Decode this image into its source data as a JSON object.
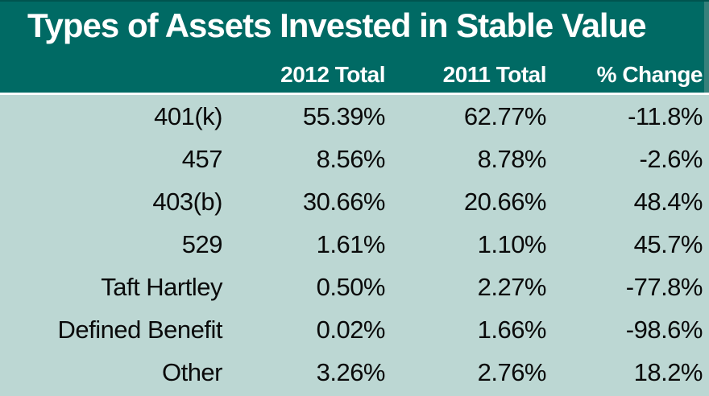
{
  "chart_data": {
    "type": "table",
    "title": "Types of Assets Invested in Stable Value",
    "columns": [
      "2012 Total",
      "2011 Total",
      "% Change"
    ],
    "rows": [
      [
        "401(k)",
        "55.39%",
        "62.77%",
        "-11.8%"
      ],
      [
        "457",
        "8.56%",
        "8.78%",
        "-2.6%"
      ],
      [
        "403(b)",
        "30.66%",
        "20.66%",
        "48.4%"
      ],
      [
        "529",
        "1.61%",
        "1.10%",
        "45.7%"
      ],
      [
        "Taft Hartley",
        "0.50%",
        "2.27%",
        "-77.8%"
      ],
      [
        "Defined Benefit",
        "0.02%",
        "1.66%",
        "-98.6%"
      ],
      [
        "Other",
        "3.26%",
        "2.76%",
        "18.2%"
      ]
    ],
    "layout_hints": {
      "alignment": "right",
      "header_position": "top",
      "row_separators": false
    }
  },
  "colors": {
    "header_bg": "#006A64",
    "header_edge_strip": "#35817B",
    "header_top_line": "#00544f",
    "separator": "#FFFFFF",
    "body_bg": "#BCD7D3",
    "header_text": "#FFFFFF",
    "body_text": "#0A0A0A"
  }
}
